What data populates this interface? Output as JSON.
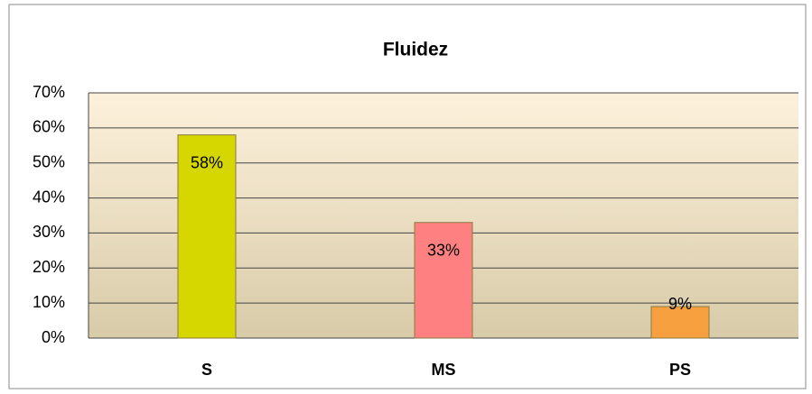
{
  "chart_data": {
    "type": "bar",
    "title": "Fluidez",
    "categories": [
      "S",
      "MS",
      "PS"
    ],
    "values": [
      58,
      33,
      9
    ],
    "value_labels": [
      "58%",
      "33%",
      "9%"
    ],
    "colors": [
      "#d6d600",
      "#ff8080",
      "#f7a040"
    ],
    "ylim": [
      0,
      70
    ],
    "yticks": [
      {
        "value": 0,
        "label": "0%"
      },
      {
        "value": 10,
        "label": "10%"
      },
      {
        "value": 20,
        "label": "20%"
      },
      {
        "value": 30,
        "label": "30%"
      },
      {
        "value": 40,
        "label": "40%"
      },
      {
        "value": 50,
        "label": "50%"
      },
      {
        "value": 60,
        "label": "60%"
      },
      {
        "value": 70,
        "label": "70%"
      }
    ],
    "grid": true
  }
}
